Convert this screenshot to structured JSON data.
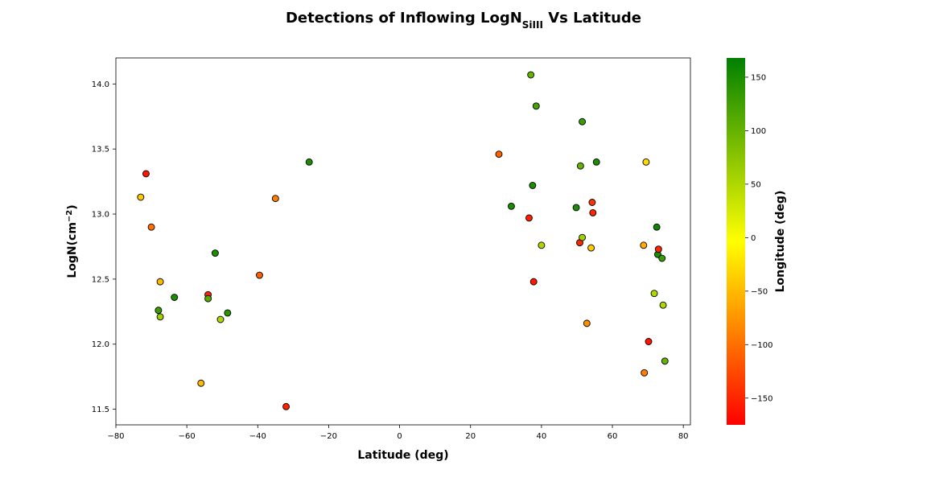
{
  "chart_data": {
    "type": "scatter",
    "title": {
      "main": "Detections of Inflowing LogN",
      "sub": "SiIII",
      "suffix": " Vs Latitude"
    },
    "xlabel": "Latitude (deg)",
    "ylabel": {
      "main": "LogN(cm",
      "sup": "−2",
      "end": ")"
    },
    "colorbar_label": "Longitude (deg)",
    "xlim": [
      -80,
      82
    ],
    "ylim": [
      11.38,
      14.2
    ],
    "xticks": [
      -80,
      -60,
      -40,
      -20,
      0,
      20,
      40,
      60,
      80
    ],
    "yticks": [
      11.5,
      12.0,
      12.5,
      13.0,
      13.5,
      14.0
    ],
    "xtick_labels": [
      "−80",
      "−60",
      "−40",
      "−20",
      "0",
      "20",
      "40",
      "60",
      "80"
    ],
    "ytick_labels": [
      "11.5",
      "12.0",
      "12.5",
      "13.0",
      "13.5",
      "14.0"
    ],
    "color_range": [
      -175,
      168
    ],
    "colorbar_ticks": [
      -150,
      -100,
      -50,
      0,
      50,
      100,
      150
    ],
    "colorbar_tick_labels": [
      "−150",
      "−100",
      "−50",
      "0",
      "50",
      "100",
      "150"
    ],
    "colormap": [
      "#ff0000",
      "#ffff00",
      "#008000"
    ],
    "grid": false,
    "points": [
      {
        "lat": -71.5,
        "logN": 13.31,
        "lon": -160
      },
      {
        "lat": -73.0,
        "logN": 13.13,
        "lon": -40
      },
      {
        "lat": -70.0,
        "logN": 12.9,
        "lon": -100
      },
      {
        "lat": -67.5,
        "logN": 12.48,
        "lon": -50
      },
      {
        "lat": -68.0,
        "logN": 12.26,
        "lon": 130
      },
      {
        "lat": -67.5,
        "logN": 12.21,
        "lon": 60
      },
      {
        "lat": -63.5,
        "logN": 12.36,
        "lon": 150
      },
      {
        "lat": -56.0,
        "logN": 11.7,
        "lon": -50
      },
      {
        "lat": -54.0,
        "logN": 12.38,
        "lon": -150
      },
      {
        "lat": -54.0,
        "logN": 12.35,
        "lon": 110
      },
      {
        "lat": -52.0,
        "logN": 12.7,
        "lon": 150
      },
      {
        "lat": -50.5,
        "logN": 12.19,
        "lon": 50
      },
      {
        "lat": -48.5,
        "logN": 12.24,
        "lon": 140
      },
      {
        "lat": -39.5,
        "logN": 12.53,
        "lon": -110
      },
      {
        "lat": -35.0,
        "logN": 13.12,
        "lon": -90
      },
      {
        "lat": -32.0,
        "logN": 11.52,
        "lon": -155
      },
      {
        "lat": -25.5,
        "logN": 13.4,
        "lon": 150
      },
      {
        "lat": 28.0,
        "logN": 13.46,
        "lon": -110
      },
      {
        "lat": 31.5,
        "logN": 13.06,
        "lon": 150
      },
      {
        "lat": 36.5,
        "logN": 12.97,
        "lon": -155
      },
      {
        "lat": 37.0,
        "logN": 14.07,
        "lon": 100
      },
      {
        "lat": 37.5,
        "logN": 13.22,
        "lon": 150
      },
      {
        "lat": 37.8,
        "logN": 12.48,
        "lon": -160
      },
      {
        "lat": 38.5,
        "logN": 13.83,
        "lon": 120
      },
      {
        "lat": 40.0,
        "logN": 12.76,
        "lon": 50
      },
      {
        "lat": 49.8,
        "logN": 13.05,
        "lon": 150
      },
      {
        "lat": 50.8,
        "logN": 12.78,
        "lon": -150
      },
      {
        "lat": 51.0,
        "logN": 13.37,
        "lon": 100
      },
      {
        "lat": 51.5,
        "logN": 13.71,
        "lon": 130
      },
      {
        "lat": 51.5,
        "logN": 12.82,
        "lon": 60
      },
      {
        "lat": 52.8,
        "logN": 12.16,
        "lon": -80
      },
      {
        "lat": 54.0,
        "logN": 12.74,
        "lon": -40
      },
      {
        "lat": 54.3,
        "logN": 13.09,
        "lon": -140
      },
      {
        "lat": 54.5,
        "logN": 13.01,
        "lon": -150
      },
      {
        "lat": 55.5,
        "logN": 13.4,
        "lon": 150
      },
      {
        "lat": 68.8,
        "logN": 12.76,
        "lon": -60
      },
      {
        "lat": 69.0,
        "logN": 11.78,
        "lon": -90
      },
      {
        "lat": 69.5,
        "logN": 13.4,
        "lon": -30
      },
      {
        "lat": 70.2,
        "logN": 12.02,
        "lon": -160
      },
      {
        "lat": 71.8,
        "logN": 12.39,
        "lon": 50
      },
      {
        "lat": 72.5,
        "logN": 12.9,
        "lon": 160
      },
      {
        "lat": 72.8,
        "logN": 12.69,
        "lon": 150
      },
      {
        "lat": 73.0,
        "logN": 12.73,
        "lon": -150
      },
      {
        "lat": 74.0,
        "logN": 12.66,
        "lon": 130
      },
      {
        "lat": 74.3,
        "logN": 12.3,
        "lon": 50
      },
      {
        "lat": 74.8,
        "logN": 11.87,
        "lon": 100
      }
    ]
  }
}
